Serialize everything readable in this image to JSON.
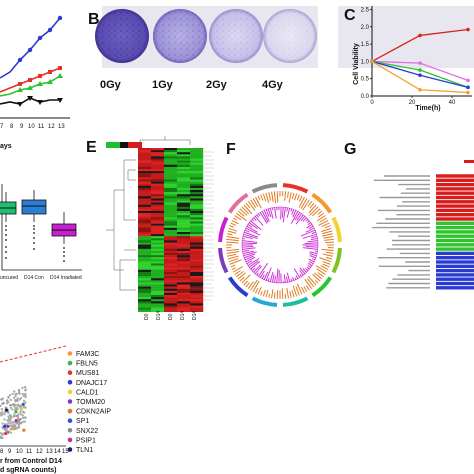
{
  "panels": {
    "B": {
      "label": "B",
      "doses": [
        "0Gy",
        "1Gy",
        "2Gy",
        "4Gy"
      ]
    },
    "C": {
      "label": "C"
    },
    "E": {
      "label": "E",
      "columns": [
        "D0",
        "D14",
        "D0",
        "D14",
        "D14"
      ]
    },
    "F": {
      "label": "F"
    },
    "G": {
      "label": "G"
    }
  },
  "top_left": {
    "xlabel_fragment": "ays",
    "ticks": [
      "7",
      "8",
      "9",
      "10",
      "11",
      "12",
      "13"
    ]
  },
  "box_plot": {
    "xlabels": [
      "uncured",
      "D14 Con",
      "D14 Irradiated"
    ],
    "colors": [
      "#1bbf6e",
      "#2a7fd4",
      "#c81fd2"
    ]
  },
  "scatter_panel": {
    "xlabel": "r from Control D14",
    "xlabel2": "d sgRNA counts)",
    "ticks": [
      "8",
      "9",
      "10",
      "11",
      "12",
      "13",
      "14",
      "15"
    ]
  },
  "gene_legend": [
    {
      "name": "FAM3C",
      "color": "#f39a2b"
    },
    {
      "name": "FBLN5",
      "color": "#39b54a"
    },
    {
      "name": "MUS81",
      "color": "#e8312a"
    },
    {
      "name": "DNAJC17",
      "color": "#2a3bd4"
    },
    {
      "name": "CALD1",
      "color": "#f2d22e"
    },
    {
      "name": "TOMM20",
      "color": "#7a3fb8"
    },
    {
      "name": "CDKN2AIP",
      "color": "#e1781c"
    },
    {
      "name": "SP1",
      "color": "#2558d8"
    },
    {
      "name": "SNX22",
      "color": "#8a8a8a"
    },
    {
      "name": "PSIP1",
      "color": "#c22a9e"
    },
    {
      "name": "TLN1",
      "color": "#1c1c6e"
    }
  ],
  "chart_data": {
    "type": "line",
    "title": "",
    "xlabel": "Time(h)",
    "ylabel": "Cell Viability",
    "x": [
      0,
      24,
      48
    ],
    "xticks": [
      0,
      20,
      40
    ],
    "yticks": [
      0.0,
      0.5,
      1.0,
      1.5,
      2.0,
      2.5
    ],
    "xlim": [
      0,
      50
    ],
    "ylim": [
      0,
      2.6
    ],
    "series": [
      {
        "color": "#d9261c",
        "values": [
          1.0,
          1.75,
          1.92
        ]
      },
      {
        "color": "#e070e0",
        "values": [
          1.0,
          0.95,
          0.45
        ]
      },
      {
        "color": "#2ec42e",
        "values": [
          1.0,
          0.75,
          0.25
        ]
      },
      {
        "color": "#2a3bd4",
        "values": [
          1.0,
          0.6,
          0.25
        ]
      },
      {
        "color": "#f0a030",
        "values": [
          1.0,
          0.18,
          0.1
        ]
      }
    ]
  }
}
